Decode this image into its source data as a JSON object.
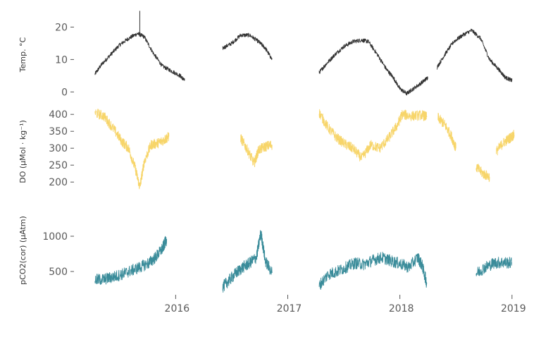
{
  "chart_data": [
    {
      "type": "line",
      "id": "temp",
      "ylabel": "Temp. °C",
      "ylim": [
        -1,
        24
      ],
      "yticks": [
        0,
        10,
        20
      ],
      "color": "#333333",
      "x_unit": "decimal year",
      "series": [
        {
          "segments": [
            {
              "x": [
                2015.28,
                2015.34,
                2015.42,
                2015.5,
                2015.58,
                2015.66,
                2015.72,
                2015.8,
                2015.88,
                2015.96,
                2016.04,
                2016.08
              ],
              "y": [
                5.5,
                8.5,
                11.5,
                14.5,
                16.5,
                18,
                17,
                12,
                8,
                6.5,
                5,
                3.5
              ]
            },
            {
              "x": [
                2016.42,
                2016.5,
                2016.58,
                2016.66,
                2016.74,
                2016.8,
                2016.86
              ],
              "y": [
                13.5,
                15,
                17.5,
                17.5,
                15.5,
                13.5,
                10
              ]
            },
            {
              "x": [
                2017.28,
                2017.34,
                2017.42,
                2017.5,
                2017.58,
                2017.66,
                2017.72,
                2017.8,
                2017.88,
                2017.94,
                2018.0,
                2018.06,
                2018.12,
                2018.2,
                2018.25
              ],
              "y": [
                6,
                8.5,
                11.5,
                14,
                15.5,
                16,
                15.5,
                11.5,
                7,
                4.5,
                1,
                -0.5,
                1,
                3,
                4.5
              ]
            },
            {
              "x": [
                2018.33,
                2018.4,
                2018.48,
                2018.56,
                2018.64,
                2018.72,
                2018.8,
                2018.88,
                2018.94,
                2019.0
              ],
              "y": [
                7.5,
                11.5,
                15.5,
                17.5,
                19,
                16.5,
                10,
                7,
                4.5,
                3.5
              ]
            }
          ]
        }
      ]
    },
    {
      "type": "line",
      "id": "do",
      "ylabel": "DO (µMol · kg⁻¹)",
      "ylim": [
        165,
        415
      ],
      "yticks": [
        200,
        250,
        300,
        350,
        400
      ],
      "color": "#f7d56a",
      "x_unit": "decimal year",
      "series": [
        {
          "segments": [
            {
              "x": [
                2015.28,
                2015.36,
                2015.44,
                2015.52,
                2015.58,
                2015.64,
                2015.68,
                2015.72,
                2015.78,
                2015.84,
                2015.9,
                2015.94
              ],
              "y": [
                405,
                395,
                360,
                320,
                300,
                240,
                185,
                260,
                310,
                315,
                325,
                335
              ]
            },
            {
              "x": [
                2016.58,
                2016.64,
                2016.7,
                2016.74,
                2016.8,
                2016.86
              ],
              "y": [
                330,
                295,
                255,
                295,
                305,
                310
              ]
            },
            {
              "x": [
                2017.28,
                2017.36,
                2017.44,
                2017.52,
                2017.58,
                2017.66,
                2017.74,
                2017.82,
                2017.9,
                2017.98,
                2018.02
              ],
              "y": [
                405,
                360,
                330,
                310,
                300,
                270,
                310,
                300,
                330,
                370,
                400
              ]
            },
            {
              "x": [
                2018.02,
                2018.1,
                2018.2,
                2018.24
              ],
              "y": [
                400,
                395,
                398,
                392
              ]
            },
            {
              "x": [
                2018.34,
                2018.4,
                2018.46,
                2018.5
              ],
              "y": [
                390,
                370,
                335,
                300
              ]
            },
            {
              "x": [
                2018.68,
                2018.74,
                2018.8
              ],
              "y": [
                245,
                225,
                215
              ]
            },
            {
              "x": [
                2018.86,
                2018.92,
                2018.98,
                2019.02
              ],
              "y": [
                290,
                315,
                330,
                340
              ]
            }
          ]
        }
      ]
    },
    {
      "type": "line",
      "id": "pco2",
      "ylabel": "pCO2(cor) (µAtm)",
      "ylim": [
        200,
        1400
      ],
      "yticks": [
        500,
        1000
      ],
      "color": "#3a8c9a",
      "x_unit": "decimal year",
      "series": [
        {
          "segments": [
            {
              "x": [
                2015.28,
                2015.36,
                2015.44,
                2015.52,
                2015.6,
                2015.68,
                2015.76,
                2015.82,
                2015.88,
                2015.92
              ],
              "y": [
                380,
                390,
                420,
                460,
                510,
                560,
                620,
                700,
                820,
                960
              ]
            },
            {
              "x": [
                2016.42,
                2016.48,
                2016.54,
                2016.6,
                2016.66,
                2016.72,
                2016.76,
                2016.8,
                2016.86
              ],
              "y": [
                280,
                380,
                480,
                560,
                620,
                700,
                1050,
                650,
                480
              ]
            },
            {
              "x": [
                2017.28,
                2017.36,
                2017.44,
                2017.52,
                2017.6,
                2017.68,
                2017.76,
                2017.84,
                2017.92,
                2018.0,
                2018.08,
                2018.16,
                2018.2,
                2018.24
              ],
              "y": [
                300,
                460,
                500,
                560,
                620,
                600,
                660,
                700,
                650,
                610,
                560,
                700,
                580,
                330
              ]
            },
            {
              "x": [
                2018.68,
                2018.76,
                2018.84,
                2018.92,
                2019.0
              ],
              "y": [
                470,
                560,
                620,
                630,
                620
              ]
            }
          ]
        }
      ]
    }
  ],
  "x_axis": {
    "ticks": [
      2016,
      2017,
      2018,
      2019
    ],
    "tick_labels": [
      "2016",
      "2017",
      "2018",
      "2019"
    ],
    "xlim": [
      2015.25,
      2019.02
    ]
  }
}
